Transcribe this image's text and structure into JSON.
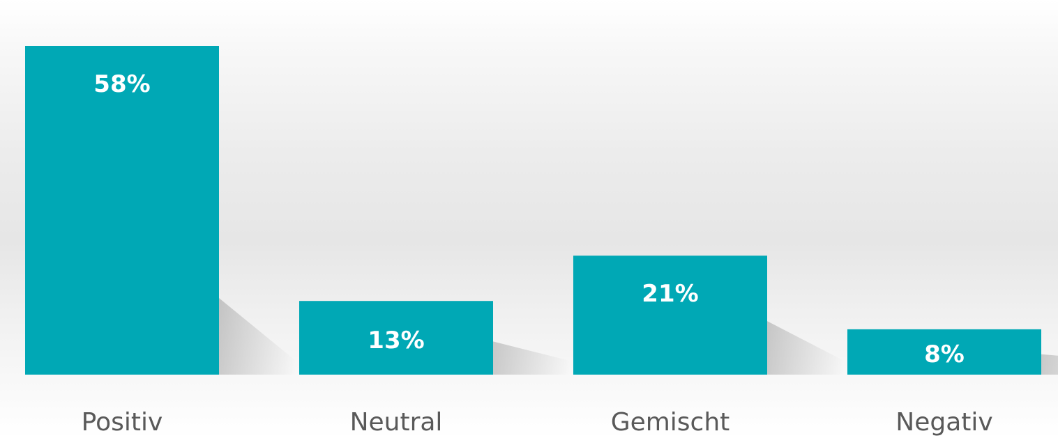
{
  "chart_data": {
    "type": "bar",
    "categories": [
      "Positiv",
      "Neutral",
      "Gemischt",
      "Negativ"
    ],
    "values": [
      58,
      13,
      21,
      8
    ],
    "data_labels": [
      "58%",
      "13%",
      "21%",
      "8%"
    ],
    "title": "",
    "xlabel": "",
    "ylabel": "",
    "unit": "%",
    "ylim": [
      0,
      58
    ],
    "grid": false,
    "bar_color": "#00a8b5"
  }
}
